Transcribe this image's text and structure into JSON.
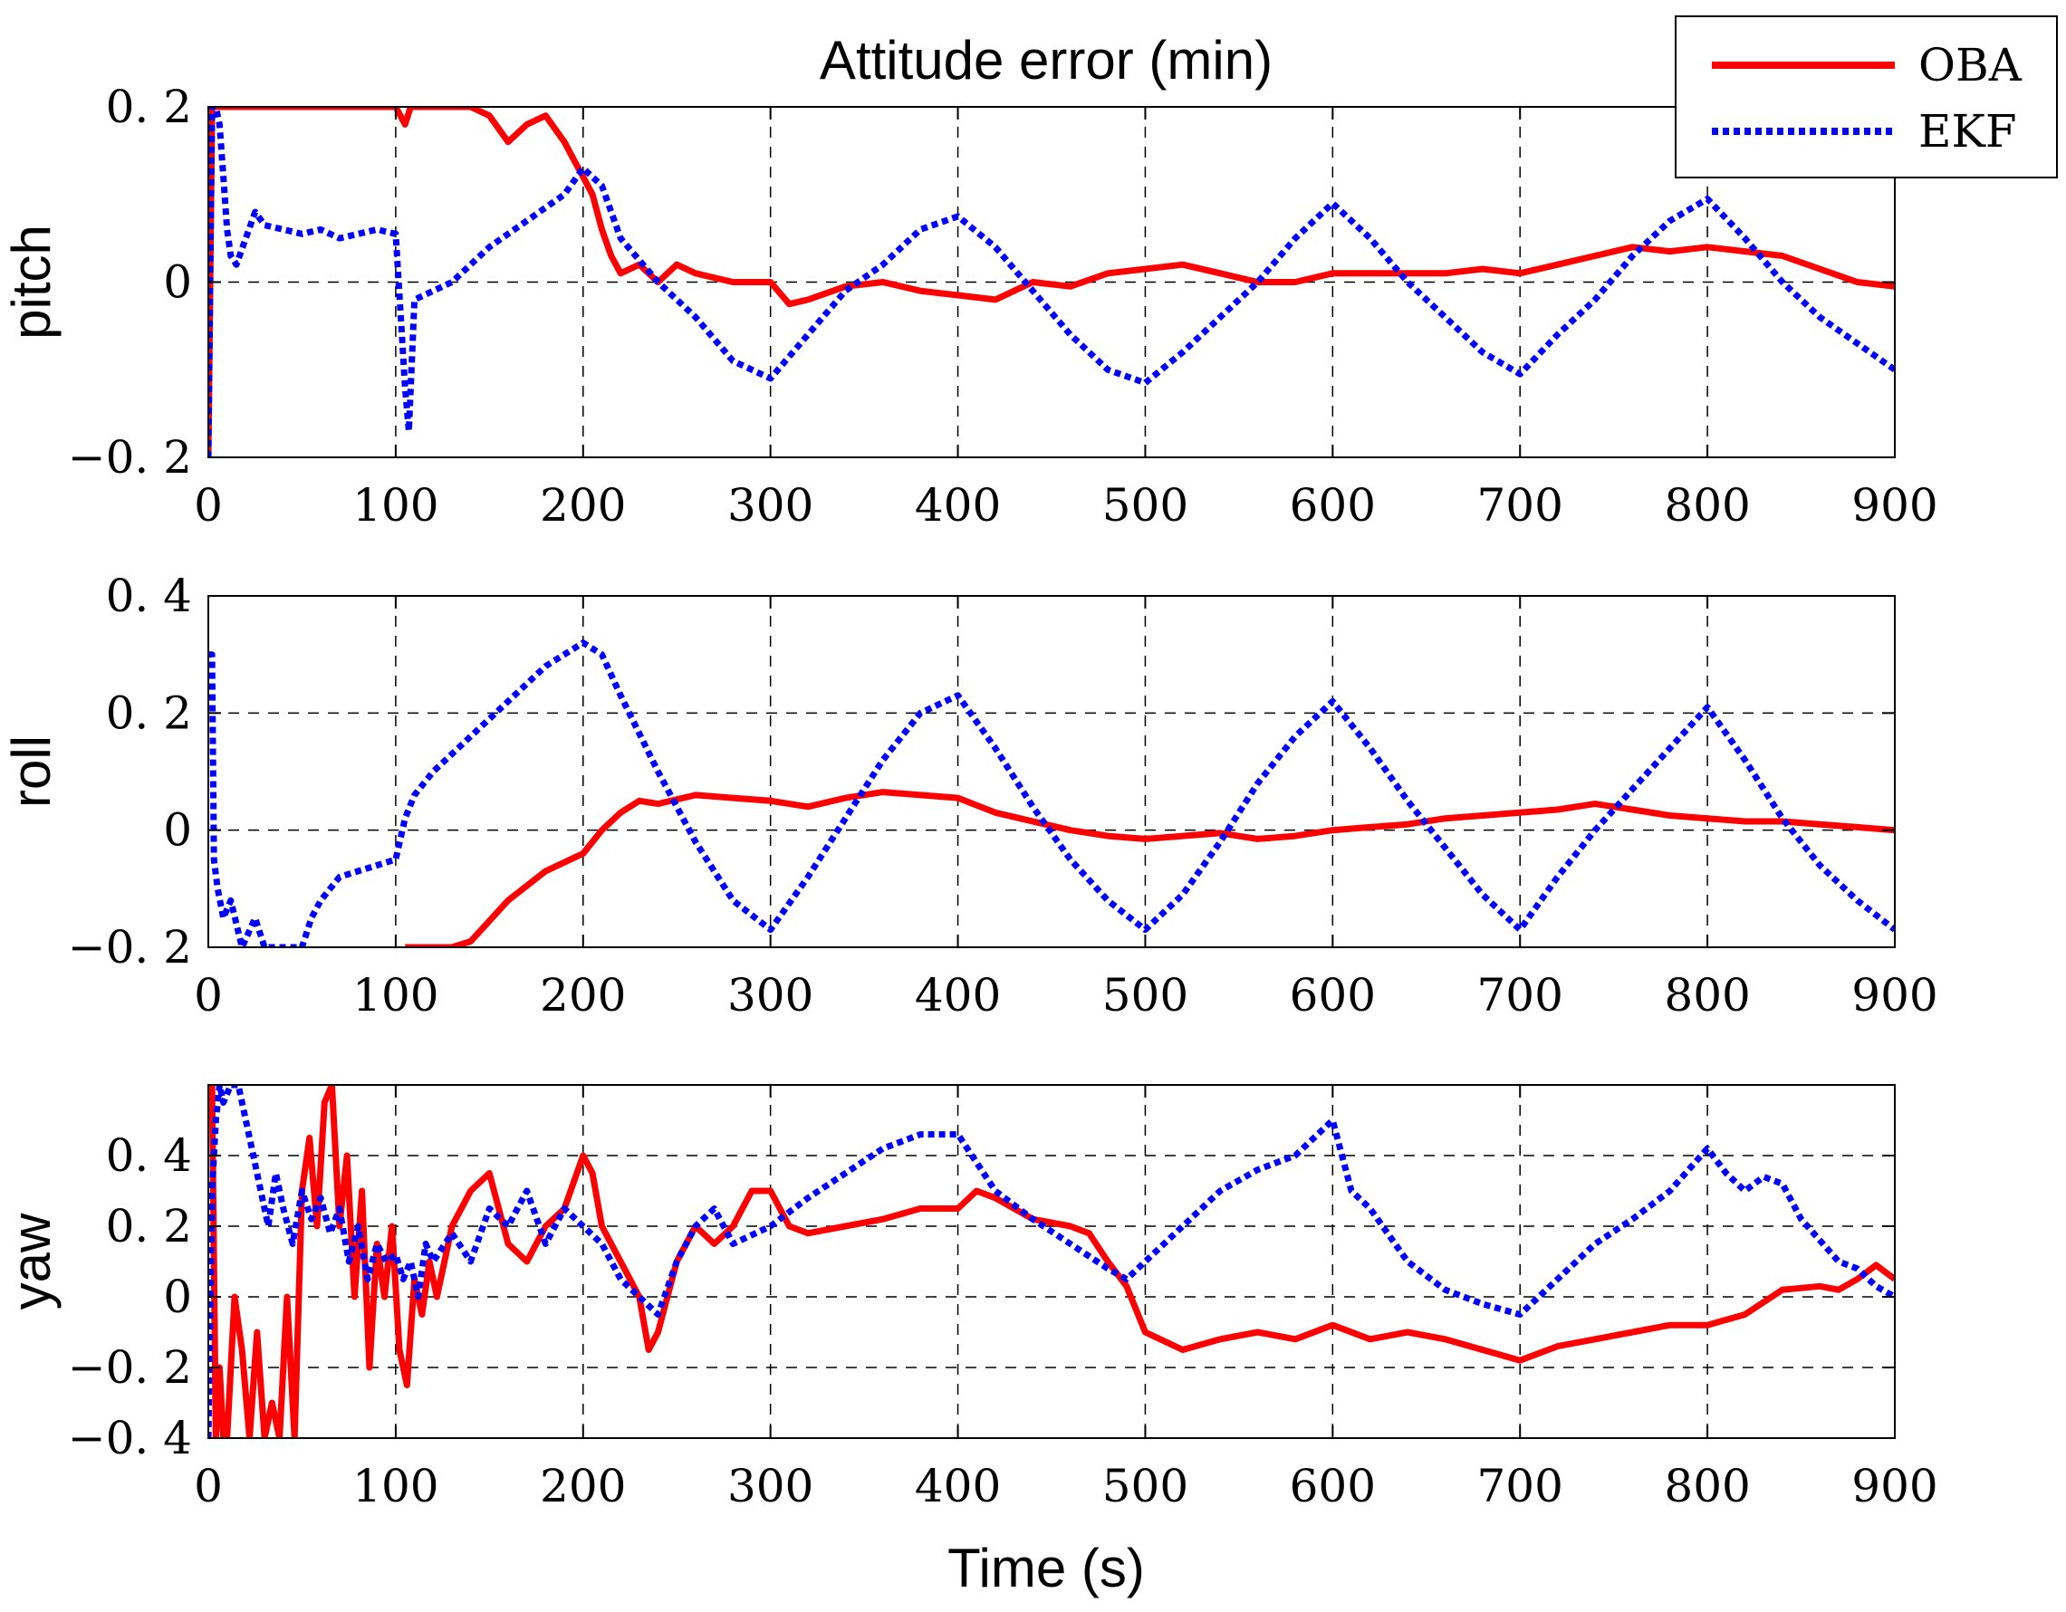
{
  "chart_data": {
    "type": "line",
    "title": "Attitude error (min)",
    "xlabel": "Time (s)",
    "xlim": [
      0,
      900
    ],
    "xticks": [
      0,
      100,
      200,
      300,
      400,
      500,
      600,
      700,
      800,
      900
    ],
    "xtick_labels": [
      "0",
      "100",
      "200",
      "300",
      "400",
      "500",
      "600",
      "700",
      "800",
      "900"
    ],
    "grid": true,
    "legend": {
      "placement": "top-right",
      "entries": [
        {
          "name": "OBA",
          "color": "#ff0000",
          "style": "solid"
        },
        {
          "name": "EKF",
          "color": "#0000ff",
          "style": "dotted"
        }
      ]
    },
    "panels": [
      {
        "ylabel": "pitch",
        "ylim": [
          -0.2,
          0.2
        ],
        "yticks": [
          -0.2,
          0,
          0.2
        ],
        "ytick_labels": [
          "−0. 2",
          "0",
          "0. 2"
        ],
        "series": [
          {
            "name": "OBA",
            "x": [
              0,
              2,
              4,
              100,
              105,
              108,
              110,
              120,
              140,
              150,
              160,
              170,
              180,
              190,
              195,
              200,
              205,
              210,
              215,
              220,
              230,
              240,
              250,
              260,
              280,
              300,
              310,
              320,
              340,
              360,
              380,
              400,
              420,
              440,
              460,
              480,
              500,
              520,
              540,
              560,
              580,
              600,
              620,
              640,
              660,
              680,
              700,
              720,
              740,
              760,
              780,
              800,
              820,
              840,
              860,
              880,
              900
            ],
            "y": [
              -0.2,
              0.2,
              0.2,
              0.2,
              0.18,
              0.2,
              0.2,
              0.2,
              0.2,
              0.19,
              0.16,
              0.18,
              0.19,
              0.16,
              0.14,
              0.12,
              0.1,
              0.06,
              0.03,
              0.01,
              0.02,
              0.0,
              0.02,
              0.01,
              0.0,
              0.0,
              -0.025,
              -0.02,
              -0.005,
              0.0,
              -0.01,
              -0.015,
              -0.02,
              0.0,
              -0.005,
              0.01,
              0.015,
              0.02,
              0.01,
              0.0,
              0.0,
              0.01,
              0.01,
              0.01,
              0.01,
              0.015,
              0.01,
              0.02,
              0.03,
              0.04,
              0.035,
              0.04,
              0.035,
              0.03,
              0.015,
              0.0,
              -0.005
            ]
          },
          {
            "name": "EKF",
            "x": [
              0,
              2,
              4,
              6,
              8,
              10,
              12,
              15,
              20,
              25,
              30,
              40,
              50,
              60,
              70,
              80,
              90,
              100,
              103,
              105,
              107,
              110,
              120,
              130,
              150,
              170,
              190,
              200,
              210,
              220,
              240,
              260,
              280,
              300,
              320,
              340,
              360,
              380,
              400,
              420,
              440,
              460,
              480,
              500,
              520,
              540,
              560,
              580,
              600,
              620,
              640,
              660,
              680,
              700,
              720,
              740,
              760,
              780,
              800,
              820,
              840,
              860,
              880,
              900
            ],
            "y": [
              -0.2,
              0.2,
              0.2,
              0.18,
              0.12,
              0.06,
              0.03,
              0.02,
              0.05,
              0.08,
              0.065,
              0.06,
              0.055,
              0.06,
              0.05,
              0.055,
              0.06,
              0.055,
              -0.05,
              -0.12,
              -0.17,
              -0.02,
              -0.01,
              0.0,
              0.04,
              0.07,
              0.1,
              0.13,
              0.11,
              0.05,
              0.0,
              -0.04,
              -0.09,
              -0.11,
              -0.06,
              -0.01,
              0.02,
              0.06,
              0.075,
              0.04,
              -0.01,
              -0.06,
              -0.1,
              -0.115,
              -0.08,
              -0.04,
              0.0,
              0.05,
              0.09,
              0.05,
              0.0,
              -0.04,
              -0.08,
              -0.105,
              -0.06,
              -0.02,
              0.03,
              0.07,
              0.095,
              0.05,
              0.0,
              -0.04,
              -0.07,
              -0.1
            ]
          }
        ]
      },
      {
        "ylabel": "roll",
        "ylim": [
          -0.2,
          0.4
        ],
        "yticks": [
          -0.2,
          0,
          0.2,
          0.4
        ],
        "ytick_labels": [
          "−0. 2",
          "0",
          "0. 2",
          "0. 4"
        ],
        "series": [
          {
            "name": "OBA",
            "x": [
              105,
              110,
              120,
              130,
              140,
              160,
              180,
              200,
              210,
              220,
              230,
              240,
              260,
              280,
              300,
              320,
              340,
              360,
              380,
              400,
              420,
              440,
              460,
              480,
              500,
              520,
              540,
              560,
              580,
              600,
              620,
              640,
              660,
              680,
              700,
              720,
              740,
              760,
              780,
              800,
              820,
              840,
              860,
              880,
              900
            ],
            "y": [
              -0.2,
              -0.2,
              -0.2,
              -0.2,
              -0.19,
              -0.12,
              -0.07,
              -0.04,
              0.0,
              0.03,
              0.05,
              0.045,
              0.06,
              0.055,
              0.05,
              0.04,
              0.055,
              0.065,
              0.06,
              0.055,
              0.03,
              0.015,
              0.0,
              -0.01,
              -0.015,
              -0.01,
              -0.005,
              -0.015,
              -0.01,
              0.0,
              0.005,
              0.01,
              0.02,
              0.025,
              0.03,
              0.035,
              0.045,
              0.035,
              0.025,
              0.02,
              0.015,
              0.015,
              0.01,
              0.005,
              0.0
            ]
          },
          {
            "name": "EKF",
            "x": [
              0,
              2,
              3,
              5,
              8,
              12,
              18,
              25,
              30,
              40,
              50,
              55,
              60,
              70,
              80,
              90,
              100,
              105,
              110,
              120,
              140,
              160,
              180,
              200,
              210,
              220,
              240,
              260,
              280,
              300,
              320,
              340,
              360,
              380,
              400,
              420,
              440,
              460,
              480,
              500,
              520,
              540,
              560,
              580,
              600,
              620,
              640,
              660,
              680,
              700,
              720,
              740,
              760,
              780,
              800,
              820,
              840,
              860,
              880,
              900
            ],
            "y": [
              0.3,
              0.3,
              -0.05,
              -0.1,
              -0.15,
              -0.12,
              -0.2,
              -0.15,
              -0.2,
              -0.2,
              -0.2,
              -0.15,
              -0.12,
              -0.08,
              -0.07,
              -0.06,
              -0.05,
              0.02,
              0.06,
              0.1,
              0.16,
              0.22,
              0.28,
              0.32,
              0.3,
              0.23,
              0.1,
              -0.02,
              -0.12,
              -0.17,
              -0.08,
              0.02,
              0.12,
              0.2,
              0.23,
              0.14,
              0.04,
              -0.05,
              -0.12,
              -0.17,
              -0.11,
              -0.02,
              0.08,
              0.16,
              0.22,
              0.14,
              0.05,
              -0.03,
              -0.11,
              -0.17,
              -0.08,
              0.0,
              0.07,
              0.14,
              0.21,
              0.12,
              0.02,
              -0.06,
              -0.12,
              -0.17
            ]
          }
        ]
      },
      {
        "ylabel": "yaw",
        "ylim": [
          -0.4,
          0.6
        ],
        "yticks": [
          -0.4,
          -0.2,
          0,
          0.2,
          0.4
        ],
        "ytick_labels": [
          "−0. 4",
          "−0. 2",
          "0",
          "0. 2",
          "0. 4"
        ],
        "series": [
          {
            "name": "OBA",
            "x": [
              0,
              2,
              4,
              6,
              8,
              10,
              14,
              18,
              22,
              26,
              30,
              34,
              38,
              42,
              46,
              50,
              54,
              58,
              62,
              66,
              70,
              74,
              78,
              82,
              86,
              90,
              94,
              98,
              102,
              106,
              110,
              114,
              118,
              122,
              130,
              140,
              150,
              160,
              170,
              180,
              190,
              200,
              205,
              210,
              220,
              230,
              235,
              240,
              250,
              260,
              270,
              280,
              290,
              300,
              310,
              320,
              340,
              360,
              380,
              400,
              410,
              420,
              440,
              460,
              470,
              480,
              490,
              500,
              520,
              540,
              560,
              580,
              600,
              620,
              640,
              660,
              680,
              700,
              720,
              740,
              760,
              780,
              800,
              820,
              840,
              860,
              870,
              880,
              890,
              900
            ],
            "y": [
              0.5,
              0.6,
              -0.4,
              -0.2,
              -0.4,
              -0.4,
              0.0,
              -0.15,
              -0.4,
              -0.1,
              -0.4,
              -0.3,
              -0.4,
              0.0,
              -0.4,
              0.3,
              0.45,
              0.2,
              0.55,
              0.6,
              0.2,
              0.4,
              0.0,
              0.3,
              -0.2,
              0.15,
              0.0,
              0.2,
              -0.15,
              -0.25,
              0.05,
              -0.05,
              0.1,
              0.0,
              0.2,
              0.3,
              0.35,
              0.15,
              0.1,
              0.2,
              0.25,
              0.4,
              0.35,
              0.2,
              0.1,
              0.0,
              -0.15,
              -0.1,
              0.1,
              0.2,
              0.15,
              0.2,
              0.3,
              0.3,
              0.2,
              0.18,
              0.2,
              0.22,
              0.25,
              0.25,
              0.3,
              0.28,
              0.22,
              0.2,
              0.18,
              0.1,
              0.03,
              -0.1,
              -0.15,
              -0.12,
              -0.1,
              -0.12,
              -0.08,
              -0.12,
              -0.1,
              -0.12,
              -0.15,
              -0.18,
              -0.14,
              -0.12,
              -0.1,
              -0.08,
              -0.08,
              -0.05,
              0.02,
              0.03,
              0.02,
              0.05,
              0.09,
              0.05
            ]
          },
          {
            "name": "EKF",
            "x": [
              0,
              2,
              4,
              6,
              8,
              12,
              16,
              20,
              24,
              28,
              32,
              36,
              40,
              45,
              50,
              55,
              60,
              65,
              70,
              75,
              80,
              85,
              90,
              95,
              100,
              104,
              108,
              112,
              116,
              120,
              130,
              140,
              150,
              160,
              170,
              180,
              190,
              200,
              210,
              220,
              230,
              240,
              250,
              260,
              270,
              280,
              300,
              320,
              340,
              360,
              380,
              400,
              420,
              440,
              460,
              480,
              490,
              500,
              520,
              540,
              560,
              580,
              600,
              610,
              620,
              640,
              660,
              680,
              700,
              720,
              740,
              760,
              780,
              800,
              810,
              820,
              830,
              840,
              850,
              860,
              870,
              880,
              890,
              900
            ],
            "y": [
              -0.4,
              0.3,
              0.5,
              0.6,
              0.55,
              0.6,
              0.6,
              0.5,
              0.4,
              0.3,
              0.2,
              0.35,
              0.25,
              0.15,
              0.3,
              0.22,
              0.28,
              0.18,
              0.25,
              0.1,
              0.2,
              0.05,
              0.15,
              0.1,
              0.12,
              0.05,
              0.1,
              0.0,
              0.15,
              0.1,
              0.18,
              0.1,
              0.25,
              0.2,
              0.3,
              0.15,
              0.25,
              0.2,
              0.15,
              0.05,
              0.0,
              -0.05,
              0.1,
              0.2,
              0.25,
              0.15,
              0.2,
              0.28,
              0.35,
              0.42,
              0.46,
              0.46,
              0.3,
              0.22,
              0.15,
              0.08,
              0.05,
              0.1,
              0.2,
              0.3,
              0.36,
              0.4,
              0.5,
              0.3,
              0.25,
              0.1,
              0.02,
              -0.02,
              -0.05,
              0.05,
              0.15,
              0.22,
              0.3,
              0.42,
              0.35,
              0.3,
              0.34,
              0.32,
              0.22,
              0.16,
              0.1,
              0.08,
              0.03,
              0.0
            ]
          }
        ]
      }
    ]
  }
}
